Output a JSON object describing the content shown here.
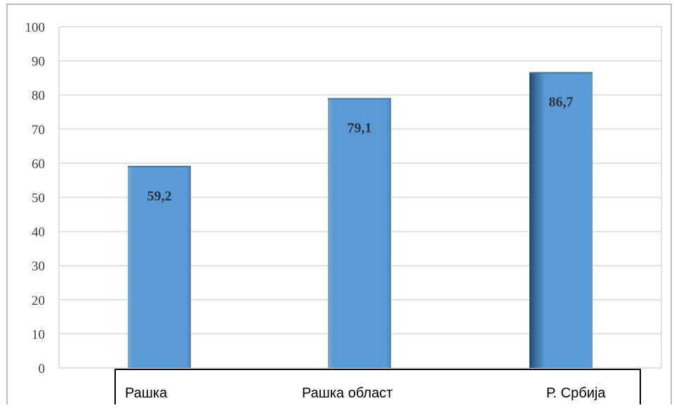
{
  "chart_data": {
    "type": "bar",
    "categories": [
      "Рашка",
      "Рашка област",
      "Р. Србија"
    ],
    "values": [
      59.2,
      79.1,
      86.7
    ],
    "data_labels": [
      "59,2",
      "79,1",
      "86,7"
    ],
    "title": "",
    "xlabel": "",
    "ylabel": "",
    "ylim": [
      0,
      100
    ],
    "yticks": [
      0,
      10,
      20,
      30,
      40,
      50,
      60,
      70,
      80,
      90,
      100
    ],
    "grid": true,
    "legend": "none",
    "colors": {
      "bar": "#5b9bd5",
      "bar_dark": "#2f5f8a",
      "grid": "#d9d9d9",
      "border": "#a6a6a6"
    }
  }
}
